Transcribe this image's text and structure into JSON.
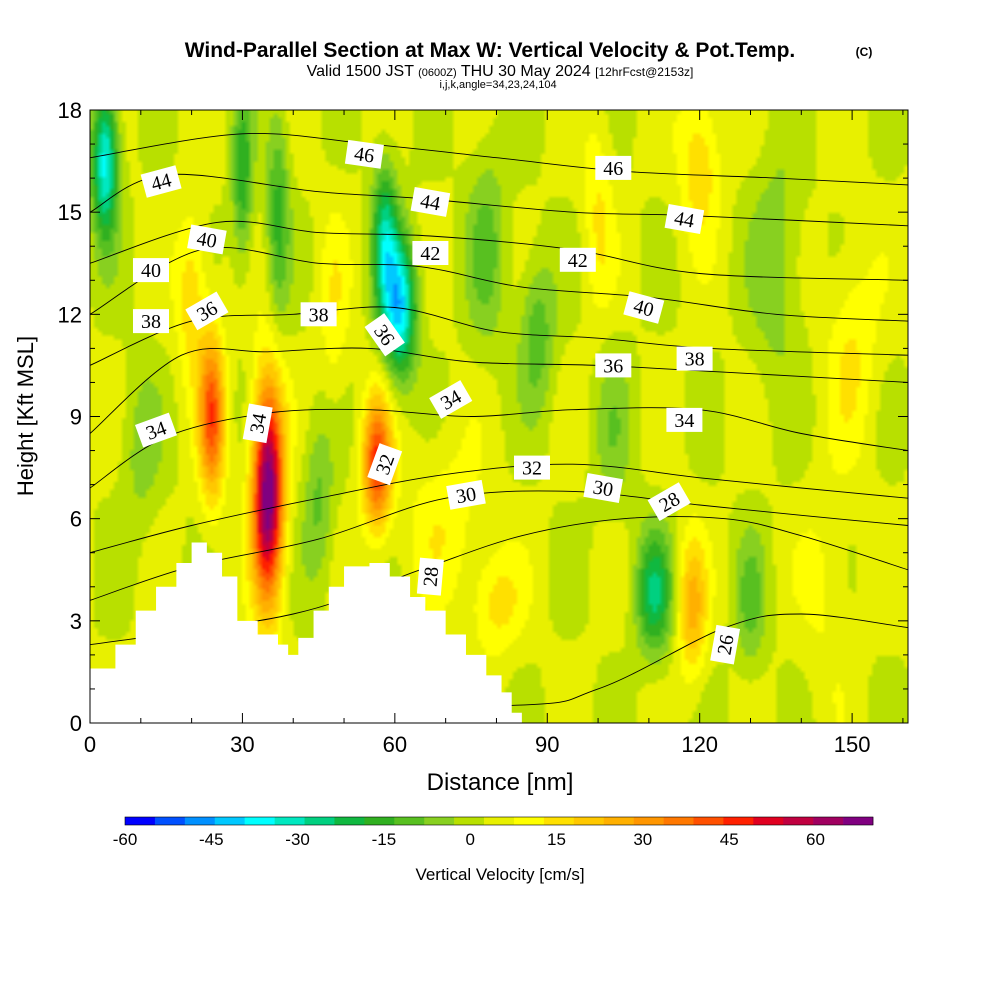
{
  "chart_data": {
    "type": "heatmap",
    "title": "Wind-Parallel Section at Max W: Vertical Velocity & Pot.Temp.",
    "copyright": "(C)",
    "subtitle_parts": [
      "Valid 1500 JST ",
      "(0600Z)",
      " THU 30 May 2024 ",
      "[12hrFcst@2153z]"
    ],
    "subtitle2": "i,j,k,angle=34,23,24,104",
    "xlabel": "Distance [nm]",
    "ylabel": "Height [Kft MSL]",
    "xlim": [
      0,
      161
    ],
    "ylim": [
      0,
      18
    ],
    "x_ticks": [
      0,
      30,
      60,
      90,
      120,
      150
    ],
    "y_ticks": [
      0,
      3,
      6,
      9,
      12,
      15,
      18
    ],
    "colorbar": {
      "label": "Vertical Velocity [cm/s]",
      "min": -60,
      "max": 70,
      "tick_values": [
        -60,
        -45,
        -30,
        -15,
        0,
        15,
        30,
        45,
        60
      ],
      "tick_labels": [
        "-60",
        "-45",
        "-30",
        "-15",
        "0",
        "15",
        "30",
        "45",
        "60"
      ],
      "colors": [
        "#0000ff",
        "#0050ff",
        "#0090ff",
        "#00c8ff",
        "#00ffff",
        "#00e8c0",
        "#00d080",
        "#10b840",
        "#30b020",
        "#58c020",
        "#88d020",
        "#b8e000",
        "#e8f000",
        "#ffff00",
        "#ffe000",
        "#ffc800",
        "#ffb000",
        "#ff9600",
        "#ff7800",
        "#ff5000",
        "#ff2000",
        "#e00020",
        "#c00040",
        "#a00060",
        "#800080"
      ]
    },
    "terrain": [
      [
        0,
        1.6
      ],
      [
        5,
        2.3
      ],
      [
        9,
        3.3
      ],
      [
        13,
        4.0
      ],
      [
        17,
        4.7
      ],
      [
        20,
        5.3
      ],
      [
        23,
        5.0
      ],
      [
        26,
        4.3
      ],
      [
        29,
        3.0
      ],
      [
        33,
        2.6
      ],
      [
        37,
        2.3
      ],
      [
        39,
        2.0
      ],
      [
        41,
        2.5
      ],
      [
        44,
        3.3
      ],
      [
        47,
        4.0
      ],
      [
        50,
        4.6
      ],
      [
        55,
        4.7
      ],
      [
        59,
        4.3
      ],
      [
        63,
        3.7
      ],
      [
        66,
        3.3
      ],
      [
        70,
        2.6
      ],
      [
        74,
        2.0
      ],
      [
        78,
        1.4
      ],
      [
        81,
        0.9
      ],
      [
        83,
        0.3
      ],
      [
        85,
        0
      ]
    ],
    "velocity_features": [
      {
        "x": 35,
        "y": 6.8,
        "sx": 3.0,
        "sy": 3.2,
        "w": 68
      },
      {
        "x": 24,
        "y": 9.0,
        "sx": 2.5,
        "sy": 2.4,
        "w": 38
      },
      {
        "x": 56.5,
        "y": 7.6,
        "sx": 2.8,
        "sy": 1.9,
        "w": 42
      },
      {
        "x": 61,
        "y": 12.2,
        "sx": 3.2,
        "sy": 2.0,
        "w": -42
      },
      {
        "x": 58,
        "y": 14.2,
        "sx": 2.5,
        "sy": 2.3,
        "w": -28
      },
      {
        "x": 3,
        "y": 16.5,
        "sx": 2.5,
        "sy": 2.2,
        "w": -40
      },
      {
        "x": 30,
        "y": 16.0,
        "sx": 2.0,
        "sy": 2.5,
        "w": -20
      },
      {
        "x": 37,
        "y": 15.0,
        "sx": 2.2,
        "sy": 3.0,
        "w": -18
      },
      {
        "x": 111,
        "y": 3.8,
        "sx": 3.5,
        "sy": 1.8,
        "w": -26
      },
      {
        "x": 118.5,
        "y": 3.4,
        "sx": 2.8,
        "sy": 2.0,
        "w": 22
      },
      {
        "x": 88,
        "y": 11.5,
        "sx": 3.5,
        "sy": 2.2,
        "w": -15
      },
      {
        "x": 100,
        "y": 15.0,
        "sx": 3.0,
        "sy": 3.0,
        "w": 10
      },
      {
        "x": 120,
        "y": 16.5,
        "sx": 4.0,
        "sy": 2.2,
        "w": 15
      },
      {
        "x": 135,
        "y": 13.5,
        "sx": 5.0,
        "sy": 3.5,
        "w": -10
      },
      {
        "x": 150,
        "y": 11.0,
        "sx": 5.0,
        "sy": 3.0,
        "w": 10
      },
      {
        "x": 130,
        "y": 3.5,
        "sx": 3.0,
        "sy": 2.0,
        "w": -12
      },
      {
        "x": 145,
        "y": 4.0,
        "sx": 5.0,
        "sy": 3.0,
        "w": 6
      },
      {
        "x": 70,
        "y": 6.0,
        "sx": 8.0,
        "sy": 2.5,
        "w": 8
      },
      {
        "x": 80,
        "y": 3.5,
        "sx": 5.0,
        "sy": 1.5,
        "w": 12
      },
      {
        "x": 20,
        "y": 12.5,
        "sx": 3.0,
        "sy": 2.5,
        "w": 15
      },
      {
        "x": 10,
        "y": 8.0,
        "sx": 4.0,
        "sy": 2.5,
        "w": -8
      },
      {
        "x": 45,
        "y": 6.5,
        "sx": 3.0,
        "sy": 2.5,
        "w": -12
      },
      {
        "x": 48,
        "y": 12.0,
        "sx": 3.0,
        "sy": 3.0,
        "w": 8
      },
      {
        "x": 78,
        "y": 14.0,
        "sx": 4.0,
        "sy": 3.0,
        "w": -12
      },
      {
        "x": 103,
        "y": 8.5,
        "sx": 4.0,
        "sy": 2.5,
        "w": -8
      }
    ],
    "isentropes": [
      {
        "theta": 26,
        "points": [
          [
            0,
            0.5
          ],
          [
            80,
            0.5
          ],
          [
            100,
            1.0
          ],
          [
            125,
            2.8
          ],
          [
            140,
            3.2
          ],
          [
            161,
            2.8
          ]
        ]
      },
      {
        "theta": 28,
        "points": [
          [
            0,
            2.3
          ],
          [
            40,
            3.2
          ],
          [
            65,
            4.5
          ],
          [
            85,
            5.5
          ],
          [
            105,
            6.0
          ],
          [
            125,
            6.0
          ],
          [
            140,
            5.5
          ],
          [
            161,
            4.5
          ]
        ]
      },
      {
        "theta": 30,
        "points": [
          [
            0,
            3.6
          ],
          [
            20,
            4.6
          ],
          [
            45,
            5.4
          ],
          [
            70,
            6.6
          ],
          [
            95,
            6.8
          ],
          [
            120,
            6.4
          ],
          [
            140,
            6.1
          ],
          [
            161,
            5.8
          ]
        ]
      },
      {
        "theta": 32,
        "points": [
          [
            0,
            5.0
          ],
          [
            20,
            5.8
          ],
          [
            45,
            6.6
          ],
          [
            70,
            7.3
          ],
          [
            95,
            7.6
          ],
          [
            120,
            7.2
          ],
          [
            140,
            6.9
          ],
          [
            161,
            6.6
          ]
        ]
      },
      {
        "theta": 34,
        "points": [
          [
            0,
            6.9
          ],
          [
            15,
            8.4
          ],
          [
            35,
            9.1
          ],
          [
            55,
            9.2
          ],
          [
            75,
            9.0
          ],
          [
            95,
            9.2
          ],
          [
            120,
            9.2
          ],
          [
            140,
            8.5
          ],
          [
            161,
            8.0
          ]
        ]
      },
      {
        "theta": 36,
        "points": [
          [
            0,
            8.5
          ],
          [
            18,
            10.8
          ],
          [
            35,
            10.9
          ],
          [
            55,
            11.0
          ],
          [
            75,
            10.6
          ],
          [
            100,
            10.5
          ],
          [
            125,
            10.3
          ],
          [
            161,
            10.0
          ]
        ]
      },
      {
        "theta": 38,
        "points": [
          [
            0,
            10.5
          ],
          [
            20,
            11.8
          ],
          [
            40,
            12.0
          ],
          [
            60,
            12.2
          ],
          [
            80,
            11.5
          ],
          [
            100,
            11.3
          ],
          [
            122,
            11.0
          ],
          [
            161,
            10.8
          ]
        ]
      },
      {
        "theta": 40,
        "points": [
          [
            0,
            12.0
          ],
          [
            22,
            13.9
          ],
          [
            45,
            13.5
          ],
          [
            65,
            13.4
          ],
          [
            85,
            12.8
          ],
          [
            110,
            12.5
          ],
          [
            135,
            12.0
          ],
          [
            161,
            11.8
          ]
        ]
      },
      {
        "theta": 42,
        "points": [
          [
            0,
            13.5
          ],
          [
            25,
            14.7
          ],
          [
            45,
            14.4
          ],
          [
            67,
            14.3
          ],
          [
            95,
            13.9
          ],
          [
            120,
            13.2
          ],
          [
            161,
            13.0
          ]
        ]
      },
      {
        "theta": 44,
        "points": [
          [
            0,
            15.0
          ],
          [
            15,
            16.1
          ],
          [
            45,
            15.6
          ],
          [
            65,
            15.4
          ],
          [
            95,
            15.0
          ],
          [
            118,
            14.9
          ],
          [
            161,
            14.6
          ]
        ]
      },
      {
        "theta": 46,
        "points": [
          [
            0,
            16.6
          ],
          [
            30,
            17.3
          ],
          [
            55,
            17.0
          ],
          [
            80,
            16.6
          ],
          [
            105,
            16.2
          ],
          [
            135,
            16.0
          ],
          [
            161,
            15.8
          ]
        ]
      }
    ],
    "contour_labels": [
      {
        "text": "44",
        "x": 14,
        "y": 15.9,
        "rot": -15
      },
      {
        "text": "40",
        "x": 23,
        "y": 14.2,
        "rot": 10
      },
      {
        "text": "40",
        "x": 12,
        "y": 13.3,
        "rot": 0
      },
      {
        "text": "38",
        "x": 12,
        "y": 11.8,
        "rot": 0
      },
      {
        "text": "36",
        "x": 23,
        "y": 12.1,
        "rot": -30
      },
      {
        "text": "34",
        "x": 13,
        "y": 8.6,
        "rot": -20
      },
      {
        "text": "34",
        "x": 33,
        "y": 8.8,
        "rot": -80
      },
      {
        "text": "46",
        "x": 54,
        "y": 16.7,
        "rot": 8
      },
      {
        "text": "44",
        "x": 67,
        "y": 15.3,
        "rot": 10
      },
      {
        "text": "42",
        "x": 67,
        "y": 13.8,
        "rot": 0
      },
      {
        "text": "38",
        "x": 45,
        "y": 12.0,
        "rot": 0
      },
      {
        "text": "36",
        "x": 58,
        "y": 11.4,
        "rot": 55
      },
      {
        "text": "34",
        "x": 71,
        "y": 9.5,
        "rot": -30
      },
      {
        "text": "32",
        "x": 58,
        "y": 7.6,
        "rot": -70
      },
      {
        "text": "30",
        "x": 74,
        "y": 6.7,
        "rot": -10
      },
      {
        "text": "28",
        "x": 67,
        "y": 4.3,
        "rot": -85
      },
      {
        "text": "46",
        "x": 103,
        "y": 16.3,
        "rot": 0
      },
      {
        "text": "44",
        "x": 117,
        "y": 14.8,
        "rot": 10
      },
      {
        "text": "42",
        "x": 96,
        "y": 13.6,
        "rot": 0
      },
      {
        "text": "40",
        "x": 109,
        "y": 12.2,
        "rot": 15
      },
      {
        "text": "36",
        "x": 103,
        "y": 10.5,
        "rot": 0
      },
      {
        "text": "38",
        "x": 119,
        "y": 10.7,
        "rot": 0
      },
      {
        "text": "34",
        "x": 117,
        "y": 8.9,
        "rot": 0
      },
      {
        "text": "32",
        "x": 87,
        "y": 7.5,
        "rot": 0
      },
      {
        "text": "30",
        "x": 101,
        "y": 6.9,
        "rot": 10
      },
      {
        "text": "28",
        "x": 114,
        "y": 6.5,
        "rot": -30
      },
      {
        "text": "26",
        "x": 125,
        "y": 2.3,
        "rot": -80
      }
    ]
  }
}
